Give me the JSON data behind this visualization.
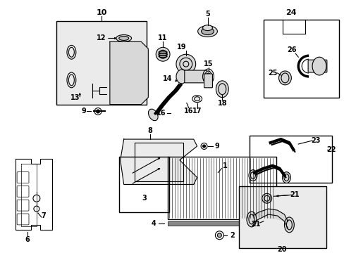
{
  "bg_color": "#ffffff",
  "fg_color": "#000000",
  "gray_fill": "#d8d8d8",
  "light_gray": "#ebebeb",
  "fig_width": 4.89,
  "fig_height": 3.6,
  "dpi": 100,
  "label_fs": 8,
  "small_fs": 7
}
